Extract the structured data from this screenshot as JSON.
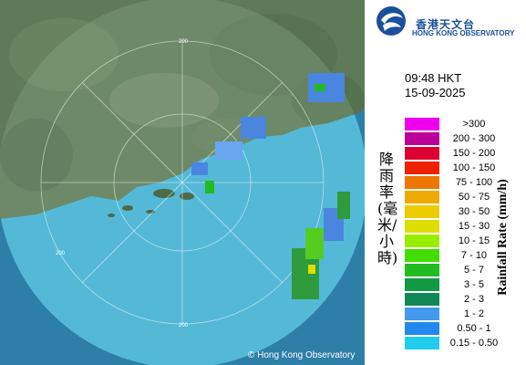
{
  "header": {
    "org_name_zh": "香港天文台",
    "org_name_en": "HONG KONG OBSERVATORY"
  },
  "timestamp": {
    "time": "09:48 HKT",
    "date": "15-09-2025"
  },
  "map": {
    "range_ring_labels": [
      "200",
      "200",
      "200"
    ],
    "copyright": "© Hong Kong Observatory"
  },
  "legend": {
    "title_zh": "降雨率(毫米/小時)",
    "title_en": "Rainfall Rate (mm/h)",
    "items": [
      {
        "label": ">300",
        "color": "#ee00ee"
      },
      {
        "label": "200 - 300",
        "color": "#bb0099"
      },
      {
        "label": "150 - 200",
        "color": "#dd0033"
      },
      {
        "label": "100 - 150",
        "color": "#ee2200"
      },
      {
        "label": "75 - 100",
        "color": "#ee7700"
      },
      {
        "label": "50 - 75",
        "color": "#eeaa00"
      },
      {
        "label": "30 - 50",
        "color": "#eecc00"
      },
      {
        "label": "15 - 30",
        "color": "#dddd00"
      },
      {
        "label": "10 - 15",
        "color": "#99ee00"
      },
      {
        "label": "7 - 10",
        "color": "#44dd00"
      },
      {
        "label": "5 - 7",
        "color": "#22bb22"
      },
      {
        "label": "3 - 5",
        "color": "#119944"
      },
      {
        "label": "2 - 3",
        "color": "#118855"
      },
      {
        "label": "1 - 2",
        "color": "#4499ee"
      },
      {
        "label": "0.50 - 1",
        "color": "#2288ee"
      },
      {
        "label": "0.15 - 0.50",
        "color": "#22ccee"
      }
    ]
  }
}
